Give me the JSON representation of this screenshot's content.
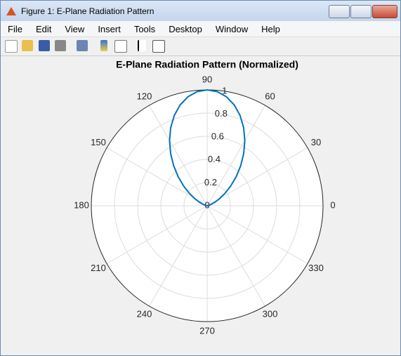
{
  "window": {
    "title": "Figure 1: E-Plane Radiation Pattern",
    "menu": [
      "File",
      "Edit",
      "View",
      "Insert",
      "Tools",
      "Desktop",
      "Window",
      "Help"
    ]
  },
  "chart_data": {
    "type": "polar",
    "title": "E-Plane Radiation Pattern (Normalized)",
    "x": [
      0,
      5,
      10,
      15,
      20,
      25,
      30,
      35,
      40,
      45,
      50,
      55,
      60,
      65,
      70,
      75,
      80,
      85,
      90,
      95,
      100,
      105,
      110,
      115,
      120,
      125,
      130,
      135,
      140,
      145,
      150,
      155,
      160,
      165,
      170,
      175,
      180
    ],
    "series": [
      {
        "color": "#0072bd",
        "values": [
          0,
          0.00066,
          0.0052,
          0.01734,
          0.04,
          0.07548,
          0.125,
          0.1887,
          0.2656,
          0.35355,
          0.4495,
          0.5497,
          0.6495,
          0.7444,
          0.8298,
          0.9012,
          0.9551,
          0.9886,
          1,
          0.9886,
          0.9551,
          0.9012,
          0.8298,
          0.7444,
          0.6495,
          0.5497,
          0.4495,
          0.35355,
          0.2656,
          0.1887,
          0.125,
          0.07548,
          0.04,
          0.01734,
          0.0052,
          0.00066,
          0
        ]
      }
    ],
    "rlim": [
      0,
      1
    ],
    "rticks": [
      0,
      0.2,
      0.4,
      0.6,
      0.8,
      1
    ],
    "thetaticks": [
      0,
      30,
      60,
      90,
      120,
      150,
      180,
      210,
      240,
      270,
      300,
      330
    ],
    "grid": true
  }
}
